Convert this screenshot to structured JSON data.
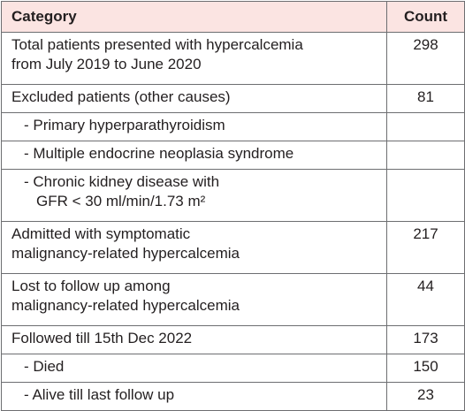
{
  "table": {
    "headers": {
      "category": "Category",
      "count": "Count"
    },
    "rows": [
      {
        "category": "Total patients presented with hypercalcemia",
        "category_cont": "from July 2019 to June 2020",
        "count": "298"
      },
      {
        "category": "Excluded patients (other causes)",
        "count": "81"
      },
      {
        "category": "- Primary hyperparathyroidism",
        "count": ""
      },
      {
        "category": "- Multiple endocrine neoplasia syndrome",
        "count": ""
      },
      {
        "category": "- Chronic kidney disease with",
        "category_cont": "GFR < 30 ml/min/1.73 m²",
        "count": ""
      },
      {
        "category": "Admitted with symptomatic",
        "category_cont": "malignancy-related hypercalcemia",
        "count": "217"
      },
      {
        "category": "Lost to follow up among",
        "category_cont": "malignancy-related hypercalcemia",
        "count": "44"
      },
      {
        "category": "Followed till 15th Dec 2022",
        "count": "173"
      },
      {
        "category": "- Died",
        "count": "150"
      },
      {
        "category": "- Alive till last follow up",
        "count": "23"
      }
    ]
  }
}
